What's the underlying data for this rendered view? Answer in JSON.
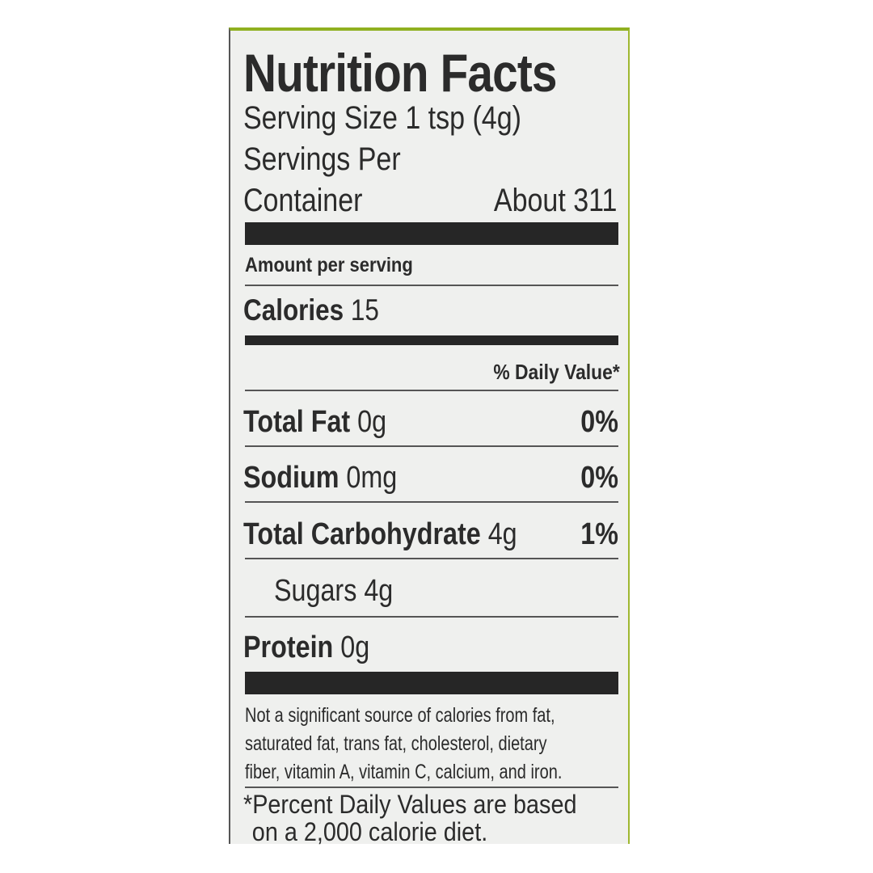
{
  "title": "Nutrition Facts",
  "serving_size": "Serving Size 1 tsp (4g)",
  "servings_per_label_1": "Servings Per",
  "servings_per_label_2": "Container",
  "servings_per_value": "About 311",
  "amount_per_serving": "Amount per serving",
  "calories_label": "Calories",
  "calories_value": "15",
  "daily_value_header": "% Daily Value*",
  "nutrients": [
    {
      "name": "Total Fat",
      "amount": "0g",
      "dv": "0%"
    },
    {
      "name": "Sodium",
      "amount": "0mg",
      "dv": "0%"
    },
    {
      "name": "Total Carbohydrate",
      "amount": "4g",
      "dv": "1%"
    },
    {
      "name": "Sugars",
      "amount": "4g",
      "dv": ""
    },
    {
      "name": "Protein",
      "amount": "0g",
      "dv": ""
    }
  ],
  "footnote_1": [
    "Not a significant source of calories from fat,",
    "saturated fat, trans fat, cholesterol, dietary",
    "fiber, vitamin A, vitamin C, calcium, and iron."
  ],
  "footnote_2": [
    "*Percent Daily Values are based",
    "on a 2,000 calorie diet."
  ],
  "colors": {
    "panel": "#eff0ee",
    "ink": "#262626",
    "edge": "#8fb020"
  }
}
